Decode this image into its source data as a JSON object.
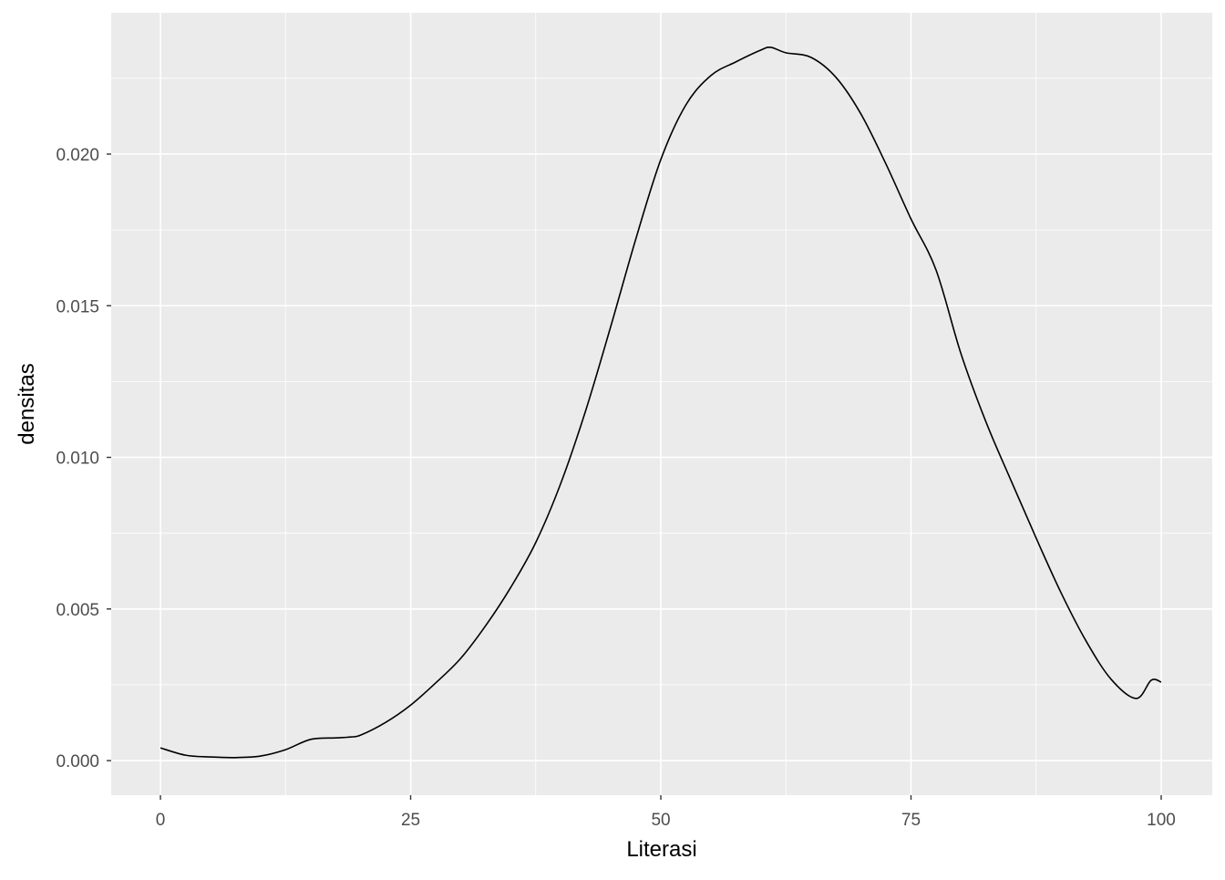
{
  "chart_data": {
    "type": "line",
    "title": "",
    "xlabel": "Literasi",
    "ylabel": "densitas",
    "xlim": [
      -4.92,
      105.1
    ],
    "ylim": [
      -0.00114,
      0.02466
    ],
    "x_ticks": [
      0,
      25,
      50,
      75,
      100
    ],
    "x_tick_labels": [
      "0",
      "25",
      "50",
      "75",
      "100"
    ],
    "y_ticks": [
      0,
      0.005,
      0.01,
      0.015,
      0.02
    ],
    "y_tick_labels": [
      "0.000",
      "0.005",
      "0.010",
      "0.015",
      "0.020"
    ],
    "grid": true,
    "panel_background": "#EBEBEB",
    "line_color": "#000000",
    "series": [
      {
        "x": [
          0,
          2.5,
          5,
          7.5,
          10,
          12.5,
          15,
          17.5,
          19,
          20,
          22.5,
          25,
          27.5,
          30,
          32.5,
          35,
          37.5,
          40,
          42.5,
          45,
          47.5,
          50,
          52.5,
          55,
          57.5,
          60,
          61,
          62.5,
          65,
          67.5,
          70,
          72.5,
          75,
          77.5,
          80,
          82.5,
          85,
          87.5,
          90,
          92.5,
          95,
          97.5,
          99,
          100
        ],
        "y": [
          0.00042,
          0.00018,
          0.00012,
          0.0001,
          0.00015,
          0.00036,
          0.0007,
          0.00075,
          0.00078,
          0.00084,
          0.00126,
          0.00183,
          0.00256,
          0.00337,
          0.00445,
          0.00571,
          0.00719,
          0.00914,
          0.01155,
          0.01432,
          0.0172,
          0.01982,
          0.02162,
          0.02259,
          0.02304,
          0.02343,
          0.02352,
          0.02334,
          0.02319,
          0.02253,
          0.02132,
          0.01967,
          0.01786,
          0.01618,
          0.01341,
          0.01116,
          0.00923,
          0.00734,
          0.00553,
          0.00394,
          0.00268,
          0.00205,
          0.00265,
          0.00259
        ]
      }
    ]
  }
}
